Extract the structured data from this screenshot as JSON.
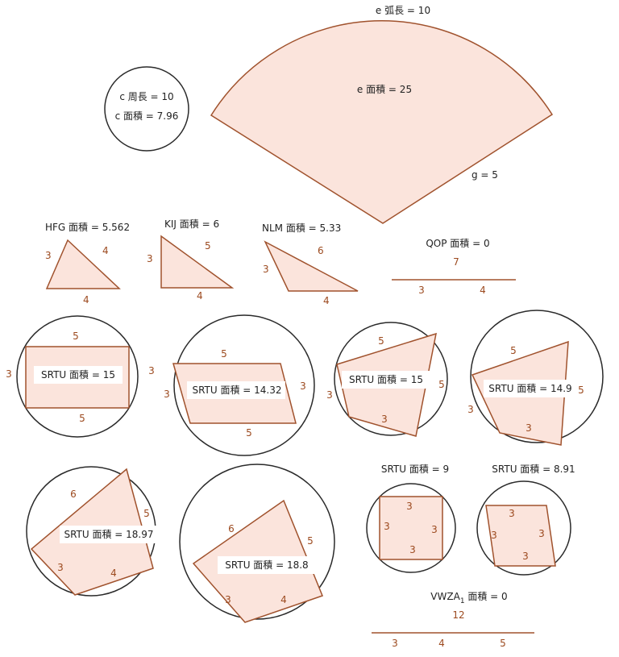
{
  "colors": {
    "stroke": "#a0522d",
    "fill": "#fbe4dc",
    "circle": "#2a2a2a",
    "side_label": "#9c4a1f"
  },
  "sector": {
    "arc_label": "e 弧長 = 10",
    "area_label": "e 面積 = 25",
    "radius_label": "g = 5"
  },
  "circle_c": {
    "perimeter_label": "c 周長 = 10",
    "area_label": "c 面積 = 7.96"
  },
  "triangles": [
    {
      "title": "HFG 面積 = 5.562",
      "sides": [
        "3",
        "4",
        "4"
      ]
    },
    {
      "title": "KIJ 面積 = 6",
      "sides": [
        "3",
        "5",
        "4"
      ]
    },
    {
      "title": "NLM 面積 = 5.33",
      "sides": [
        "3",
        "6",
        "4"
      ]
    }
  ],
  "degenerate_triangle": {
    "title": "QOP 面積 = 0",
    "top": "7",
    "sides": [
      "3",
      "4"
    ]
  },
  "quads": [
    {
      "title": "SRTU 面積 = 15",
      "sides": [
        "5",
        "3",
        "5",
        "3"
      ]
    },
    {
      "title": "SRTU 面積 = 14.32",
      "sides": [
        "5",
        "3",
        "5",
        "3"
      ]
    },
    {
      "title": "SRTU 面積 = 15",
      "sides": [
        "5",
        "5",
        "3",
        "3"
      ]
    },
    {
      "title": "SRTU 面積 = 14.9",
      "sides": [
        "5",
        "5",
        "3",
        "3"
      ]
    },
    {
      "title": "SRTU 面積 = 18.97",
      "sides": [
        "6",
        "5",
        "4",
        "3"
      ]
    },
    {
      "title": "SRTU 面積 = 18.8",
      "sides": [
        "6",
        "5",
        "4",
        "3"
      ]
    },
    {
      "title": "SRTU 面積 = 9",
      "sides": [
        "3",
        "3",
        "3",
        "3"
      ]
    },
    {
      "title": "SRTU 面積 = 8.91",
      "sides": [
        "3",
        "3",
        "3",
        "3"
      ]
    }
  ],
  "degenerate_quad": {
    "title_main": "VWZA",
    "title_sub": "1",
    "title_rest": " 面積 = 0",
    "top": "12",
    "sides": [
      "3",
      "4",
      "5"
    ]
  }
}
